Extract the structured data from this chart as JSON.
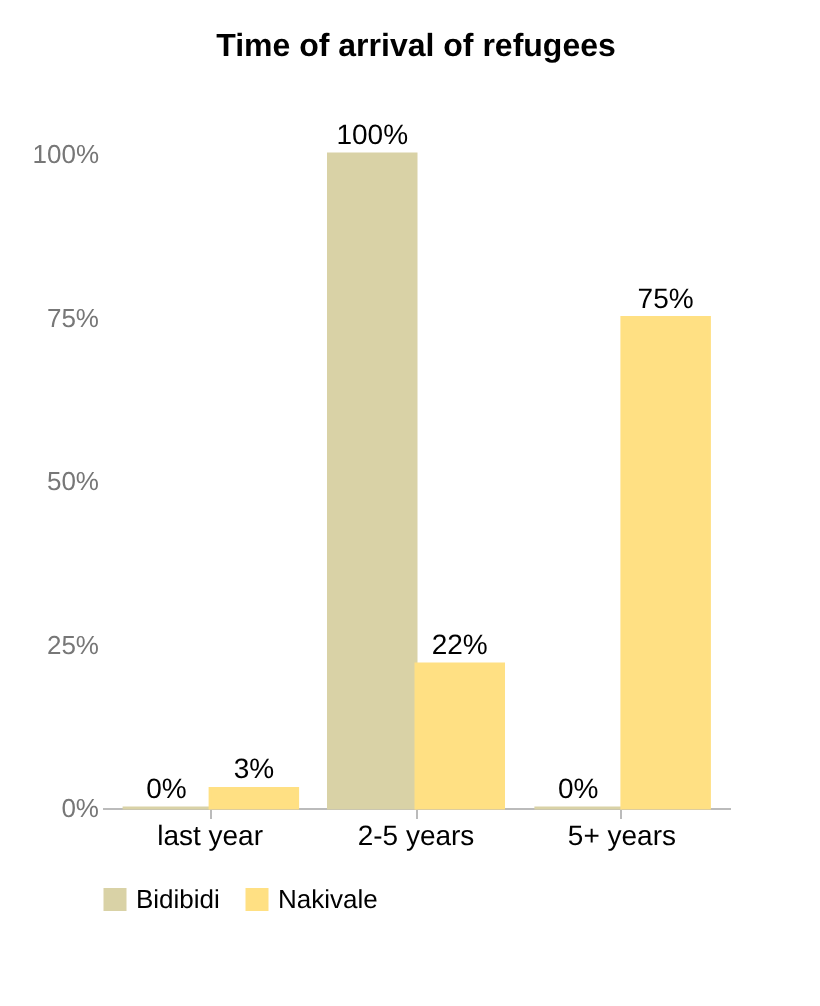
{
  "chart_data": {
    "type": "bar",
    "title": "Time of arrival of refugees",
    "categories": [
      "last year",
      "2-5 years",
      "5+ years"
    ],
    "series": [
      {
        "name": "Bidibidi",
        "color": "#d9d2a6",
        "values": [
          0,
          100,
          0
        ],
        "value_labels": [
          "0%",
          "100%",
          "0%"
        ]
      },
      {
        "name": "Nakivale",
        "color": "#ffe083",
        "values": [
          3,
          22,
          75
        ],
        "value_labels": [
          "3%",
          "22%",
          "75%"
        ]
      }
    ],
    "ylim": [
      0,
      100
    ],
    "yticks": [
      {
        "value": 0,
        "label": "0%"
      },
      {
        "value": 25,
        "label": "25%"
      },
      {
        "value": 50,
        "label": "50%"
      },
      {
        "value": 75,
        "label": "75%"
      },
      {
        "value": 100,
        "label": "100%"
      }
    ],
    "grid": false,
    "legend": "bottom"
  }
}
